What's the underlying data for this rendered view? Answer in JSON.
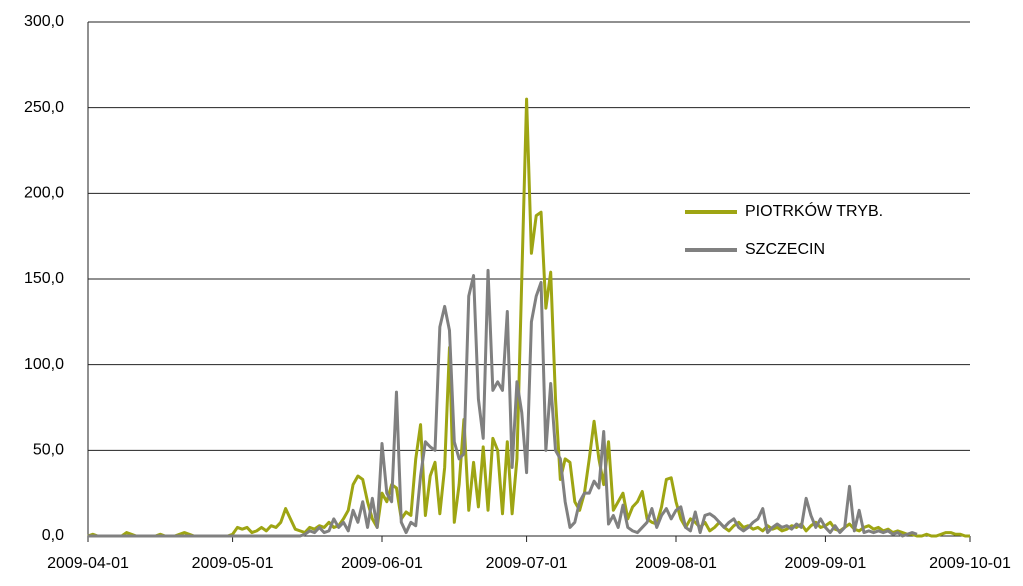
{
  "chart_data": {
    "type": "line",
    "x": [
      "2009-04-01",
      "2009-04-02",
      "2009-04-03",
      "2009-04-04",
      "2009-04-05",
      "2009-04-06",
      "2009-04-07",
      "2009-04-08",
      "2009-04-09",
      "2009-04-10",
      "2009-04-11",
      "2009-04-12",
      "2009-04-13",
      "2009-04-14",
      "2009-04-15",
      "2009-04-16",
      "2009-04-17",
      "2009-04-18",
      "2009-04-19",
      "2009-04-20",
      "2009-04-21",
      "2009-04-22",
      "2009-04-23",
      "2009-04-24",
      "2009-04-25",
      "2009-04-26",
      "2009-04-27",
      "2009-04-28",
      "2009-04-29",
      "2009-04-30",
      "2009-05-01",
      "2009-05-02",
      "2009-05-03",
      "2009-05-04",
      "2009-05-05",
      "2009-05-06",
      "2009-05-07",
      "2009-05-08",
      "2009-05-09",
      "2009-05-10",
      "2009-05-11",
      "2009-05-12",
      "2009-05-13",
      "2009-05-14",
      "2009-05-15",
      "2009-05-16",
      "2009-05-17",
      "2009-05-18",
      "2009-05-19",
      "2009-05-20",
      "2009-05-21",
      "2009-05-22",
      "2009-05-23",
      "2009-05-24",
      "2009-05-25",
      "2009-05-26",
      "2009-05-27",
      "2009-05-28",
      "2009-05-29",
      "2009-05-30",
      "2009-05-31",
      "2009-06-01",
      "2009-06-02",
      "2009-06-03",
      "2009-06-04",
      "2009-06-05",
      "2009-06-06",
      "2009-06-07",
      "2009-06-08",
      "2009-06-09",
      "2009-06-10",
      "2009-06-11",
      "2009-06-12",
      "2009-06-13",
      "2009-06-14",
      "2009-06-15",
      "2009-06-16",
      "2009-06-17",
      "2009-06-18",
      "2009-06-19",
      "2009-06-20",
      "2009-06-21",
      "2009-06-22",
      "2009-06-23",
      "2009-06-24",
      "2009-06-25",
      "2009-06-26",
      "2009-06-27",
      "2009-06-28",
      "2009-06-29",
      "2009-06-30",
      "2009-07-01",
      "2009-07-02",
      "2009-07-03",
      "2009-07-04",
      "2009-07-05",
      "2009-07-06",
      "2009-07-07",
      "2009-07-08",
      "2009-07-09",
      "2009-07-10",
      "2009-07-11",
      "2009-07-12",
      "2009-07-13",
      "2009-07-14",
      "2009-07-15",
      "2009-07-16",
      "2009-07-17",
      "2009-07-18",
      "2009-07-19",
      "2009-07-20",
      "2009-07-21",
      "2009-07-22",
      "2009-07-23",
      "2009-07-24",
      "2009-07-25",
      "2009-07-26",
      "2009-07-27",
      "2009-07-28",
      "2009-07-29",
      "2009-07-30",
      "2009-07-31",
      "2009-08-01",
      "2009-08-02",
      "2009-08-03",
      "2009-08-04",
      "2009-08-05",
      "2009-08-06",
      "2009-08-07",
      "2009-08-08",
      "2009-08-09",
      "2009-08-10",
      "2009-08-11",
      "2009-08-12",
      "2009-08-13",
      "2009-08-14",
      "2009-08-15",
      "2009-08-16",
      "2009-08-17",
      "2009-08-18",
      "2009-08-19",
      "2009-08-20",
      "2009-08-21",
      "2009-08-22",
      "2009-08-23",
      "2009-08-24",
      "2009-08-25",
      "2009-08-26",
      "2009-08-27",
      "2009-08-28",
      "2009-08-29",
      "2009-08-30",
      "2009-08-31",
      "2009-09-01",
      "2009-09-02",
      "2009-09-03",
      "2009-09-04",
      "2009-09-05",
      "2009-09-06",
      "2009-09-07",
      "2009-09-08",
      "2009-09-09",
      "2009-09-10",
      "2009-09-11",
      "2009-09-12",
      "2009-09-13",
      "2009-09-14",
      "2009-09-15",
      "2009-09-16",
      "2009-09-17",
      "2009-09-18",
      "2009-09-19",
      "2009-09-20",
      "2009-09-21",
      "2009-09-22",
      "2009-09-23",
      "2009-09-24",
      "2009-09-25",
      "2009-09-26",
      "2009-09-27",
      "2009-09-28",
      "2009-09-29",
      "2009-09-30",
      "2009-10-01"
    ],
    "series": [
      {
        "name": "PIOTRKÓW TRYB.",
        "color": "#9ea513",
        "values": [
          0,
          1,
          0,
          0,
          0,
          0,
          0,
          0,
          2,
          1,
          0,
          0,
          0,
          0,
          0,
          1,
          0,
          0,
          0,
          1,
          2,
          1,
          0,
          0,
          0,
          0,
          0,
          0,
          0,
          0,
          1,
          5,
          4,
          5,
          2,
          3,
          5,
          3,
          6,
          5,
          8,
          16,
          10,
          4,
          3,
          2,
          5,
          4,
          6,
          5,
          8,
          5,
          6,
          10,
          15,
          30,
          35,
          33,
          20,
          10,
          5,
          25,
          20,
          30,
          28,
          10,
          14,
          12,
          45,
          65,
          12,
          35,
          43,
          13,
          40,
          110,
          8,
          30,
          68,
          15,
          43,
          17,
          52,
          15,
          57,
          50,
          13,
          55,
          13,
          45,
          150,
          255,
          165,
          187,
          189,
          133,
          154,
          80,
          33,
          45,
          43,
          20,
          15,
          25,
          45,
          67,
          45,
          30,
          55,
          15,
          20,
          25,
          10,
          17,
          20,
          26,
          10,
          8,
          7,
          17,
          33,
          34,
          20,
          10,
          5,
          10,
          8,
          5,
          8,
          3,
          5,
          8,
          5,
          3,
          6,
          8,
          5,
          6,
          4,
          5,
          3,
          6,
          4,
          5,
          3,
          4,
          6,
          5,
          7,
          3,
          6,
          8,
          5,
          6,
          8,
          4,
          3,
          5,
          7,
          4,
          3,
          5,
          6,
          4,
          5,
          3,
          4,
          2,
          3,
          2,
          1,
          1,
          0,
          0,
          1,
          0,
          0,
          1,
          2,
          2,
          1,
          1,
          0,
          0
        ]
      },
      {
        "name": "SZCZECIN",
        "color": "#808080",
        "values": [
          0,
          0,
          0,
          0,
          0,
          0,
          0,
          0,
          0,
          0,
          0,
          0,
          0,
          0,
          0,
          0,
          0,
          0,
          0,
          0,
          0,
          0,
          0,
          0,
          0,
          0,
          0,
          0,
          0,
          0,
          0,
          0,
          0,
          0,
          0,
          0,
          0,
          0,
          0,
          0,
          0,
          0,
          0,
          0,
          0,
          1,
          3,
          2,
          5,
          2,
          3,
          10,
          5,
          8,
          3,
          15,
          8,
          20,
          5,
          22,
          5,
          54,
          25,
          20,
          84,
          8,
          2,
          8,
          6,
          35,
          55,
          52,
          50,
          122,
          134,
          120,
          55,
          45,
          48,
          140,
          152,
          80,
          57,
          155,
          85,
          90,
          85,
          131,
          40,
          90,
          72,
          37,
          125,
          140,
          148,
          50,
          89,
          50,
          45,
          20,
          5,
          8,
          20,
          25,
          25,
          32,
          28,
          61,
          7,
          12,
          5,
          18,
          5,
          3,
          2,
          5,
          8,
          16,
          5,
          12,
          16,
          10,
          15,
          17,
          5,
          3,
          14,
          2,
          12,
          13,
          11,
          8,
          5,
          8,
          10,
          5,
          3,
          5,
          8,
          10,
          16,
          2,
          5,
          7,
          5,
          6,
          4,
          7,
          5,
          22,
          12,
          5,
          10,
          5,
          2,
          6,
          2,
          5,
          29,
          3,
          15,
          2,
          3,
          2,
          3,
          2,
          3,
          1,
          2,
          0,
          1,
          2,
          1,
          null,
          null,
          null,
          null,
          null,
          null,
          null,
          null,
          null,
          null,
          null
        ]
      }
    ],
    "xlim": [
      "2009-04-01",
      "2009-10-01"
    ],
    "xticks": [
      "2009-04-01",
      "2009-05-01",
      "2009-06-01",
      "2009-07-01",
      "2009-08-01",
      "2009-09-01",
      "2009-10-01"
    ],
    "ylim": [
      0,
      300
    ],
    "yticks": [
      {
        "value": 0,
        "label": "0,0"
      },
      {
        "value": 50,
        "label": "50,0"
      },
      {
        "value": 100,
        "label": "100,0"
      },
      {
        "value": 150,
        "label": "150,0"
      },
      {
        "value": 200,
        "label": "200,0"
      },
      {
        "value": 250,
        "label": "250,0"
      },
      {
        "value": 300,
        "label": "300,0"
      }
    ],
    "grid": true,
    "legend": "right"
  }
}
